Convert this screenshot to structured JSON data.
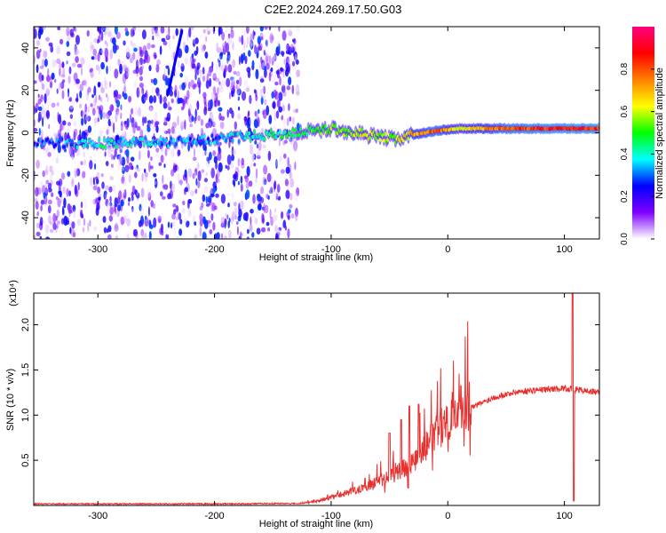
{
  "title": "C2E2.2024.269.17.50.G03",
  "chart_data": [
    {
      "type": "heatmap",
      "xlabel": "Height of straight line (km)",
      "ylabel": "Frequency (Hz)",
      "xlim": [
        -355,
        130
      ],
      "ylim": [
        -50,
        50
      ],
      "xticks": [
        -300,
        -200,
        -100,
        0,
        100
      ],
      "yticks": [
        -40,
        -20,
        0,
        20,
        40
      ],
      "colorbar": {
        "label": "Normalized spectral amplitude",
        "range": [
          0,
          1
        ],
        "ticks": [
          "0.0",
          "0.2",
          "0.4",
          "0.6",
          "0.8"
        ],
        "colormap": [
          "#ffffff",
          "#8000ff",
          "#0000ff",
          "#00ffff",
          "#00ff00",
          "#ffff00",
          "#ff8000",
          "#ff0000",
          "#ff0080"
        ]
      },
      "noise_region_x": [
        -355,
        -128
      ],
      "ridge": [
        {
          "x": -355,
          "freq": -5,
          "amp": 0.25
        },
        {
          "x": -300,
          "freq": -5,
          "amp": 0.4
        },
        {
          "x": -220,
          "freq": -4,
          "amp": 0.3
        },
        {
          "x": -130,
          "freq": 0,
          "amp": 0.45
        },
        {
          "x": -100,
          "freq": 2,
          "amp": 0.55
        },
        {
          "x": -70,
          "freq": -1,
          "amp": 0.6
        },
        {
          "x": -45,
          "freq": -3,
          "amp": 0.55
        },
        {
          "x": -30,
          "freq": -1,
          "amp": 0.7
        },
        {
          "x": -10,
          "freq": 1,
          "amp": 0.8
        },
        {
          "x": 10,
          "freq": 2,
          "amp": 0.6
        },
        {
          "x": 50,
          "freq": 2,
          "amp": 0.8
        },
        {
          "x": 90,
          "freq": 2,
          "amp": 0.85
        },
        {
          "x": 130,
          "freq": 2,
          "amp": 0.85
        }
      ],
      "streak": {
        "x": [
          -240,
          -228
        ],
        "freq": [
          18,
          48
        ]
      }
    },
    {
      "type": "line",
      "xlabel": "Height of straight line (km)",
      "ylabel": "SNR (10 * v/v)",
      "scale_label": "(x10⁴)",
      "xlim": [
        -355,
        130
      ],
      "ylim": [
        0,
        2.35
      ],
      "xticks": [
        -300,
        -200,
        -100,
        0,
        100
      ],
      "yticks": [
        "0.5",
        "1.0",
        "1.5",
        "2.0"
      ],
      "color": "#e8302e",
      "envelope": [
        {
          "x": -355,
          "y": 0.01
        },
        {
          "x": -200,
          "y": 0.01
        },
        {
          "x": -130,
          "y": 0.015
        },
        {
          "x": -110,
          "y": 0.05
        },
        {
          "x": -90,
          "y": 0.12
        },
        {
          "x": -70,
          "y": 0.2
        },
        {
          "x": -50,
          "y": 0.3
        },
        {
          "x": -40,
          "y": 0.38
        },
        {
          "x": -30,
          "y": 0.45
        },
        {
          "x": -20,
          "y": 0.6
        },
        {
          "x": -10,
          "y": 0.75
        },
        {
          "x": 0,
          "y": 0.92
        },
        {
          "x": 20,
          "y": 1.08
        },
        {
          "x": 40,
          "y": 1.2
        },
        {
          "x": 60,
          "y": 1.26
        },
        {
          "x": 80,
          "y": 1.28
        },
        {
          "x": 100,
          "y": 1.3
        },
        {
          "x": 130,
          "y": 1.25
        }
      ],
      "spikes": [
        {
          "x": -50,
          "y": 0.8
        },
        {
          "x": -40,
          "y": 0.95
        },
        {
          "x": -33,
          "y": 1.1
        },
        {
          "x": -25,
          "y": 1.12
        },
        {
          "x": 107,
          "y": 2.35
        },
        {
          "x": 108,
          "y": 0.05
        }
      ]
    }
  ]
}
